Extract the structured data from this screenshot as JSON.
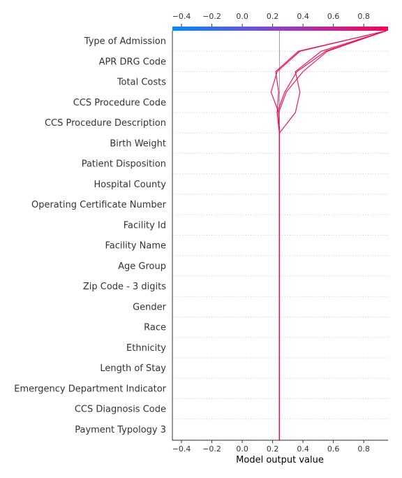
{
  "chart_data": {
    "type": "decision-plot",
    "xlabel": "Model output value",
    "xlim": [
      -0.46,
      0.96
    ],
    "xticks": [
      -0.4,
      -0.2,
      0.0,
      0.2,
      0.4,
      0.6,
      0.8
    ],
    "xtick_labels": [
      "−0.4",
      "−0.2",
      "0.0",
      "0.2",
      "0.4",
      "0.6",
      "0.8"
    ],
    "base_value": 0.245,
    "colormap": {
      "low": "#008bfb",
      "mid": "#8f3fc8",
      "high": "#ff0052"
    },
    "features": [
      "Type of Admission",
      "APR DRG Code",
      "Total Costs",
      "CCS Procedure Code",
      "CCS Procedure Description",
      "Birth Weight",
      "Patient Disposition",
      "Hospital County",
      "Operating Certificate Number",
      "Facility Id",
      "Facility Name",
      "Age Group",
      "Zip Code - 3 digits",
      "Gender",
      "Race",
      "Ethnicity",
      "Length of Stay",
      "Emergency Department Indicator",
      "CCS Diagnosis Code",
      "Payment Typology 3"
    ],
    "series": [
      {
        "values": [
          0.95,
          0.37,
          0.22,
          0.24,
          0.23,
          0.245,
          0.245,
          0.245,
          0.245,
          0.245,
          0.245,
          0.245,
          0.245,
          0.245,
          0.245,
          0.245,
          0.245,
          0.245,
          0.245,
          0.245,
          0.245
        ]
      },
      {
        "values": [
          0.95,
          0.38,
          0.23,
          0.19,
          0.24,
          0.245,
          0.245,
          0.245,
          0.245,
          0.245,
          0.245,
          0.245,
          0.245,
          0.245,
          0.245,
          0.245,
          0.245,
          0.245,
          0.245,
          0.245,
          0.245
        ]
      },
      {
        "values": [
          0.95,
          0.56,
          0.4,
          0.29,
          0.24,
          0.245,
          0.245,
          0.245,
          0.245,
          0.245,
          0.245,
          0.245,
          0.245,
          0.245,
          0.245,
          0.245,
          0.245,
          0.245,
          0.245,
          0.245,
          0.245
        ]
      },
      {
        "values": [
          0.95,
          0.52,
          0.35,
          0.38,
          0.35,
          0.245,
          0.245,
          0.245,
          0.245,
          0.245,
          0.245,
          0.245,
          0.245,
          0.245,
          0.245,
          0.245,
          0.245,
          0.245,
          0.245,
          0.245,
          0.245
        ]
      },
      {
        "values": [
          0.95,
          0.55,
          0.36,
          0.28,
          0.23,
          0.245,
          0.245,
          0.245,
          0.245,
          0.245,
          0.245,
          0.245,
          0.245,
          0.245,
          0.245,
          0.245,
          0.245,
          0.245,
          0.245,
          0.245,
          0.245
        ]
      }
    ]
  }
}
